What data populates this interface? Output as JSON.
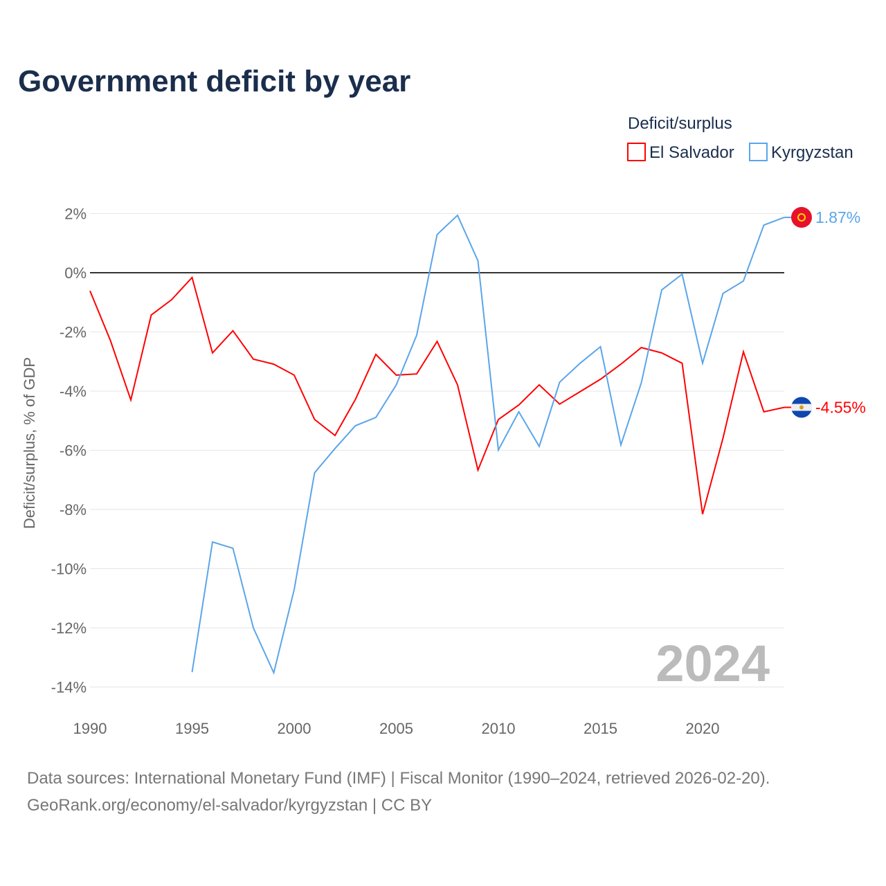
{
  "chart_data": {
    "type": "line",
    "title": "Government deficit by year",
    "legend_title": "Deficit/surplus",
    "legend_placement": "top-right",
    "ylabel": "Deficit/surplus, % of GDP",
    "xlabel": "",
    "xlim": [
      1990,
      2024
    ],
    "ylim": [
      -14,
      2
    ],
    "x_ticks": [
      1990,
      1995,
      2000,
      2005,
      2010,
      2015,
      2020
    ],
    "y_ticks": [
      2,
      0,
      -2,
      -4,
      -6,
      -8,
      -10,
      -12,
      -14
    ],
    "y_tick_labels": [
      "2%",
      "0%",
      "-2%",
      "-4%",
      "-6%",
      "-8%",
      "-10%",
      "-12%",
      "-14%"
    ],
    "year_watermark": "2024",
    "series": [
      {
        "name": "El Salvador",
        "color": "#ff0000",
        "flag": "el-salvador-flag",
        "end_label": "-4.55%",
        "start_year": 1990,
        "values": [
          -0.61,
          -2.29,
          -4.3,
          -1.43,
          -0.91,
          -0.16,
          -2.71,
          -1.96,
          -2.92,
          -3.09,
          -3.46,
          -4.96,
          -5.5,
          -4.28,
          -2.76,
          -3.46,
          -3.42,
          -2.32,
          -3.79,
          -6.67,
          -4.96,
          -4.47,
          -3.79,
          -4.44,
          -4.02,
          -3.6,
          -3.09,
          -2.53,
          -2.71,
          -3.06,
          -8.16,
          -5.59,
          -2.67,
          -4.7,
          -4.55
        ]
      },
      {
        "name": "Kyrgyzstan",
        "color": "#5aa5ea",
        "flag": "kyrgyzstan-flag",
        "end_label": "1.87%",
        "start_year": 1995,
        "values": [
          -13.5,
          -9.1,
          -9.31,
          -12.0,
          -13.52,
          -10.71,
          -6.76,
          -5.94,
          -5.17,
          -4.89,
          -3.79,
          -2.11,
          1.29,
          1.94,
          0.4,
          -5.99,
          -4.7,
          -5.87,
          -3.7,
          -3.06,
          -2.5,
          -5.82,
          -3.72,
          -0.58,
          -0.05,
          -3.06,
          -0.7,
          -0.28,
          1.61,
          1.87
        ]
      }
    ]
  },
  "footer": {
    "sources": "Data sources: International Monetary Fund (IMF) | Fiscal Monitor (1990–2024, retrieved 2026-02-20).",
    "link": "GeoRank.org/economy/el-salvador/kyrgyzstan | CC BY"
  }
}
